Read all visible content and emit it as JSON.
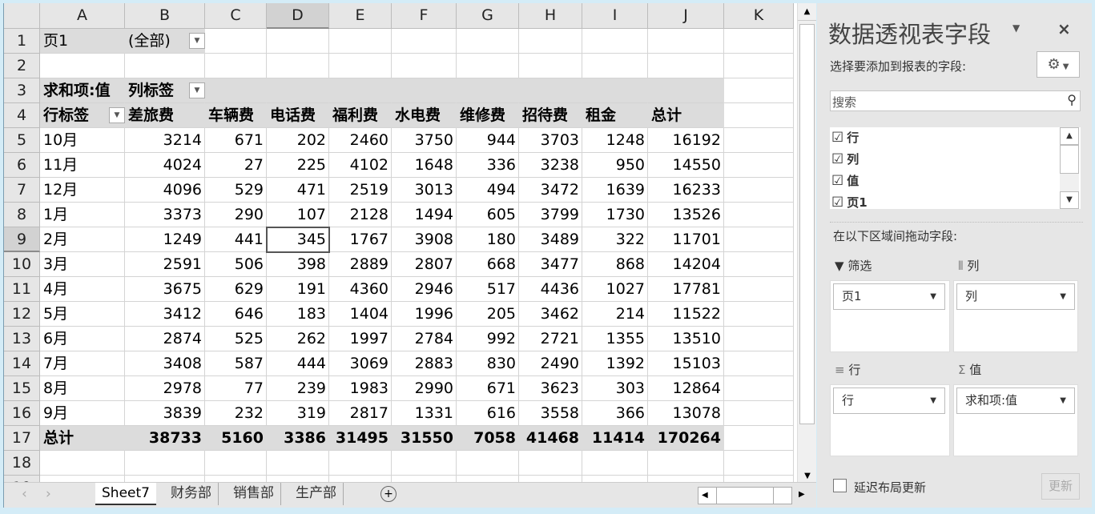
{
  "columns": [
    "A",
    "B",
    "C",
    "D",
    "E",
    "F",
    "G",
    "H",
    "I",
    "J",
    "K"
  ],
  "rows_count": 19,
  "filter": {
    "label": "页1",
    "value": "(全部)"
  },
  "value_label": "求和项:值",
  "col_label": "列标签",
  "row_label": "行标签",
  "headers": [
    "差旅费",
    "车辆费",
    "电话费",
    "福利费",
    "水电费",
    "维修费",
    "招待费",
    "租金",
    "总计"
  ],
  "data_rows": [
    [
      "10月",
      3214,
      671,
      202,
      2460,
      3750,
      944,
      3703,
      1248,
      16192
    ],
    [
      "11月",
      4024,
      27,
      225,
      4102,
      1648,
      336,
      3238,
      950,
      14550
    ],
    [
      "12月",
      4096,
      529,
      471,
      2519,
      3013,
      494,
      3472,
      1639,
      16233
    ],
    [
      "1月",
      3373,
      290,
      107,
      2128,
      1494,
      605,
      3799,
      1730,
      13526
    ],
    [
      "2月",
      1249,
      441,
      345,
      1767,
      3908,
      180,
      3489,
      322,
      11701
    ],
    [
      "3月",
      2591,
      506,
      398,
      2889,
      2807,
      668,
      3477,
      868,
      14204
    ],
    [
      "4月",
      3675,
      629,
      191,
      4360,
      2946,
      517,
      4436,
      1027,
      17781
    ],
    [
      "5月",
      3412,
      646,
      183,
      1404,
      1996,
      205,
      3462,
      214,
      11522
    ],
    [
      "6月",
      2874,
      525,
      262,
      1997,
      2784,
      992,
      2721,
      1355,
      13510
    ],
    [
      "7月",
      3408,
      587,
      444,
      3069,
      2883,
      830,
      2490,
      1392,
      15103
    ],
    [
      "8月",
      2978,
      77,
      239,
      1983,
      2990,
      671,
      3623,
      303,
      12864
    ],
    [
      "9月",
      3839,
      232,
      319,
      2817,
      1331,
      616,
      3558,
      366,
      13078
    ]
  ],
  "total_row": [
    "总计",
    38733,
    5160,
    3386,
    31495,
    31550,
    7058,
    41468,
    11414,
    170264
  ],
  "selected_cell": "D9",
  "sheet_tabs": [
    "Sheet7",
    "财务部",
    "销售部",
    "生产部"
  ],
  "active_tab": "Sheet7",
  "panel": {
    "title": "数据透视表字段",
    "choose_label": "选择要添加到报表的字段:",
    "search_placeholder": "搜索",
    "fields": [
      {
        "name": "行",
        "checked": true
      },
      {
        "name": "列",
        "checked": true
      },
      {
        "name": "值",
        "checked": true
      },
      {
        "name": "页1",
        "checked": true
      }
    ],
    "drag_label": "在以下区域间拖动字段:",
    "areas": {
      "filter_title": "筛选",
      "filter_item": "页1",
      "columns_title": "列",
      "columns_item": "列",
      "rows_title": "行",
      "rows_item": "行",
      "values_title": "值",
      "values_item": "求和项:值"
    },
    "defer_label": "延迟布局更新",
    "update_label": "更新"
  }
}
